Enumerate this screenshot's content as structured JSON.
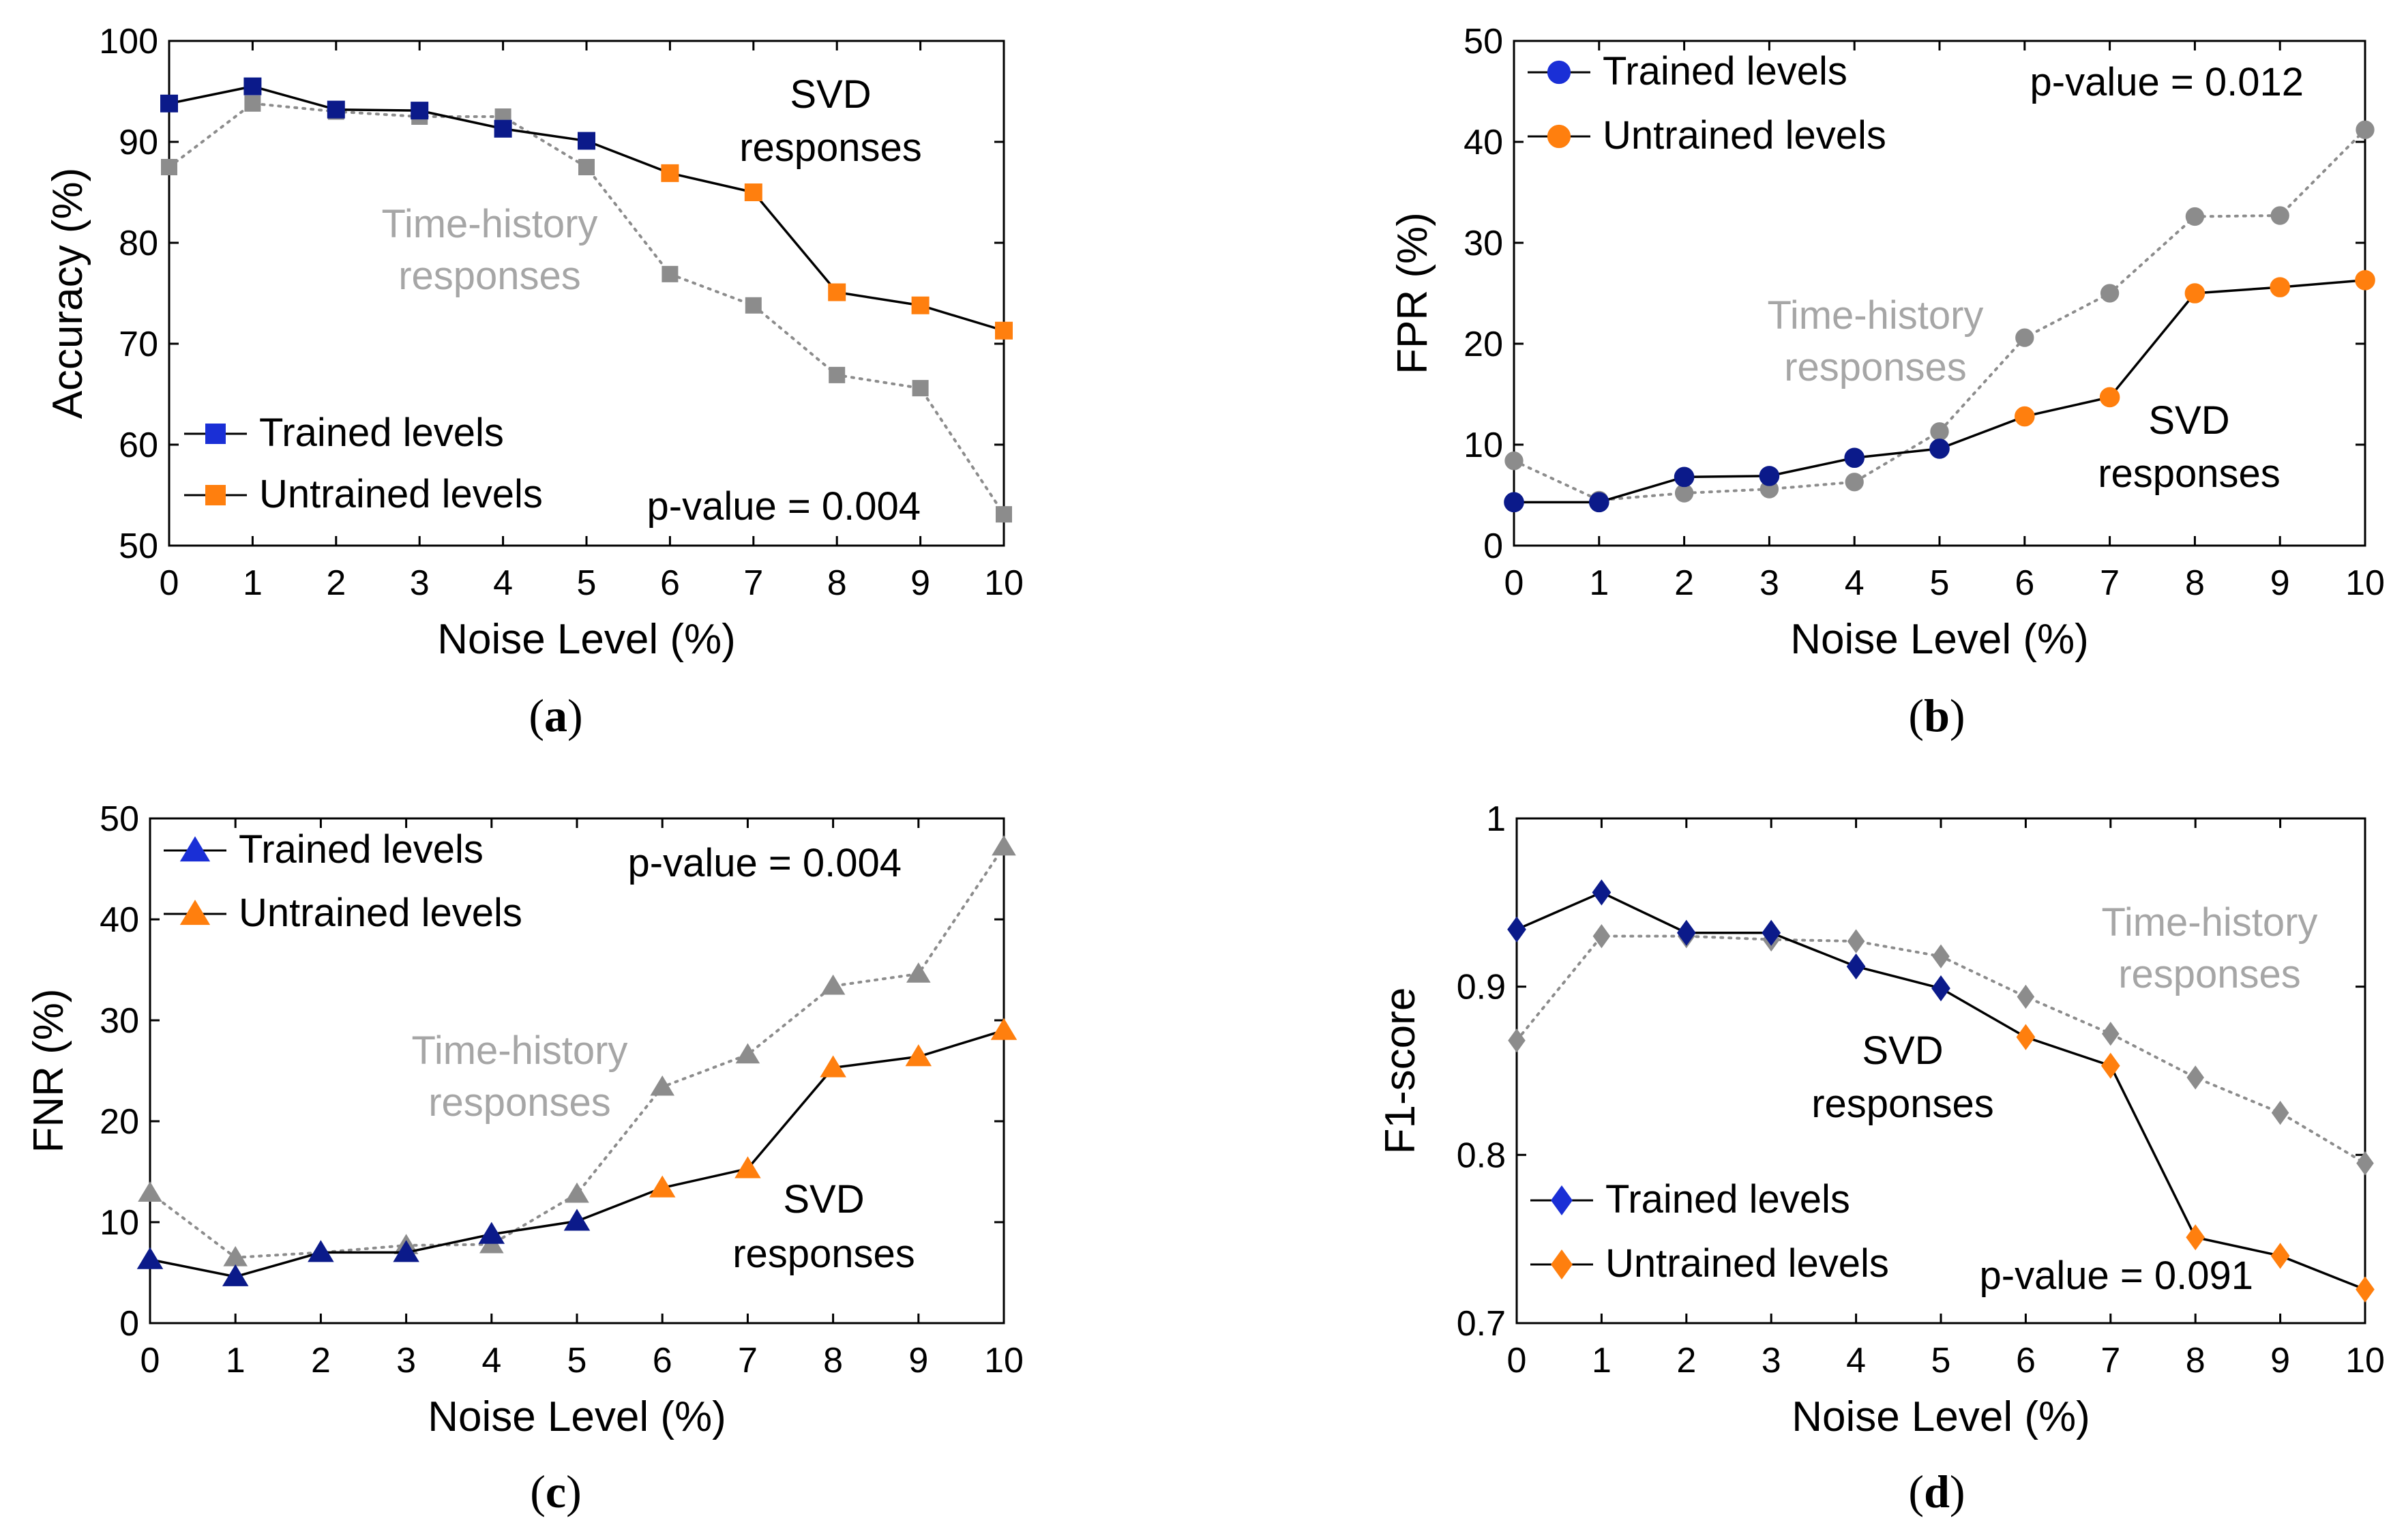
{
  "colors": {
    "svd_trained_fill": "#0b1a8a",
    "trained_legend_fill": "#1a2fd6",
    "untrained_fill": "#ff7f0e",
    "time_history": "#8c8c8c",
    "time_history_text": "#a6a6a6",
    "svd_line": "#000000"
  },
  "chart_data": [
    {
      "id": "a",
      "type": "line",
      "marker": "square",
      "caption": "(a)",
      "xlabel": "Noise Level (%)",
      "ylabel": "Accuracy (%)",
      "xlim": [
        0,
        10
      ],
      "ylim": [
        50,
        100
      ],
      "yticks": [
        50,
        60,
        70,
        80,
        90,
        100
      ],
      "x": [
        0,
        1,
        2,
        3,
        4,
        5,
        6,
        7,
        8,
        9,
        10
      ],
      "trained_levels": [
        0,
        1,
        2,
        3,
        4,
        5
      ],
      "series": [
        {
          "name": "SVD responses",
          "values": [
            93.8,
            95.5,
            93.2,
            93.1,
            91.3,
            90.1,
            86.9,
            85.0,
            75.1,
            73.8,
            71.3
          ]
        },
        {
          "name": "Time-history responses",
          "values": [
            87.5,
            93.8,
            93.0,
            92.5,
            92.5,
            87.5,
            76.9,
            73.8,
            66.9,
            65.6,
            53.1
          ]
        }
      ],
      "legend": {
        "trained": "Trained levels",
        "untrained": "Untrained levels",
        "position": "bottom-left"
      },
      "p_value": "p-value = 0.004",
      "svd_label": [
        "SVD",
        "responses"
      ],
      "th_label": [
        "Time-history",
        "responses"
      ]
    },
    {
      "id": "b",
      "type": "line",
      "marker": "circle",
      "caption": "(b)",
      "xlabel": "Noise Level (%)",
      "ylabel": "FPR (%)",
      "xlim": [
        0,
        10
      ],
      "ylim": [
        0,
        50
      ],
      "yticks": [
        0,
        10,
        20,
        30,
        40,
        50
      ],
      "x": [
        0,
        1,
        2,
        3,
        4,
        5,
        6,
        7,
        8,
        9,
        10
      ],
      "trained_levels": [
        0,
        1,
        2,
        3,
        4,
        5
      ],
      "series": [
        {
          "name": "SVD responses",
          "values": [
            4.3,
            4.3,
            6.8,
            6.9,
            8.7,
            9.6,
            12.8,
            14.7,
            25.0,
            25.6,
            26.3
          ]
        },
        {
          "name": "Time-history responses",
          "values": [
            8.4,
            4.5,
            5.2,
            5.6,
            6.3,
            11.3,
            20.6,
            25.0,
            32.6,
            32.7,
            41.2
          ]
        }
      ],
      "legend": {
        "trained": "Trained levels",
        "untrained": "Untrained levels",
        "position": "top-left"
      },
      "p_value": "p-value = 0.012",
      "svd_label": [
        "SVD",
        "responses"
      ],
      "th_label": [
        "Time-history",
        "responses"
      ]
    },
    {
      "id": "c",
      "type": "line",
      "marker": "triangle",
      "caption": "(c)",
      "xlabel": "Noise Level (%)",
      "ylabel": "FNR (%)",
      "xlim": [
        0,
        10
      ],
      "ylim": [
        0,
        50
      ],
      "yticks": [
        0,
        10,
        20,
        30,
        40,
        50
      ],
      "x": [
        0,
        1,
        2,
        3,
        4,
        5,
        6,
        7,
        8,
        9,
        10
      ],
      "trained_levels": [
        0,
        1,
        2,
        3,
        4,
        5
      ],
      "series": [
        {
          "name": "SVD responses",
          "values": [
            6.3,
            4.6,
            7.0,
            7.0,
            8.8,
            10.1,
            13.4,
            15.3,
            25.3,
            26.4,
            29.0
          ]
        },
        {
          "name": "Time-history responses",
          "values": [
            12.9,
            6.5,
            7.0,
            7.7,
            7.8,
            12.8,
            23.4,
            26.6,
            33.4,
            34.6,
            47.2
          ]
        }
      ],
      "legend": {
        "trained": "Trained levels",
        "untrained": "Untrained levels",
        "position": "top-left"
      },
      "p_value": "p-value = 0.004",
      "svd_label": [
        "SVD",
        "responses"
      ],
      "th_label": [
        "Time-history",
        "responses"
      ]
    },
    {
      "id": "d",
      "type": "line",
      "marker": "diamond",
      "caption": "(d)",
      "xlabel": "Noise Level (%)",
      "ylabel": "F1-score",
      "xlim": [
        0,
        10
      ],
      "ylim": [
        0.7,
        1.0
      ],
      "yticks": [
        0.7,
        0.8,
        0.9,
        1.0
      ],
      "ytick_labels": [
        "0.7",
        "0.8",
        "0.9",
        "1"
      ],
      "x": [
        0,
        1,
        2,
        3,
        4,
        5,
        6,
        7,
        8,
        9,
        10
      ],
      "trained_levels": [
        0,
        1,
        2,
        3,
        4,
        5
      ],
      "series": [
        {
          "name": "SVD responses",
          "values": [
            0.934,
            0.956,
            0.932,
            0.932,
            0.912,
            0.899,
            0.87,
            0.853,
            0.751,
            0.74,
            0.72
          ]
        },
        {
          "name": "Time-history responses",
          "values": [
            0.868,
            0.93,
            0.93,
            0.928,
            0.927,
            0.918,
            0.894,
            0.872,
            0.846,
            0.825,
            0.795
          ]
        }
      ],
      "legend": {
        "trained": "Trained levels",
        "untrained": "Untrained levels",
        "position": "bottom-left"
      },
      "p_value": "p-value = 0.091",
      "svd_label": [
        "SVD",
        "responses"
      ],
      "th_label": [
        "Time-history",
        "responses"
      ]
    }
  ]
}
